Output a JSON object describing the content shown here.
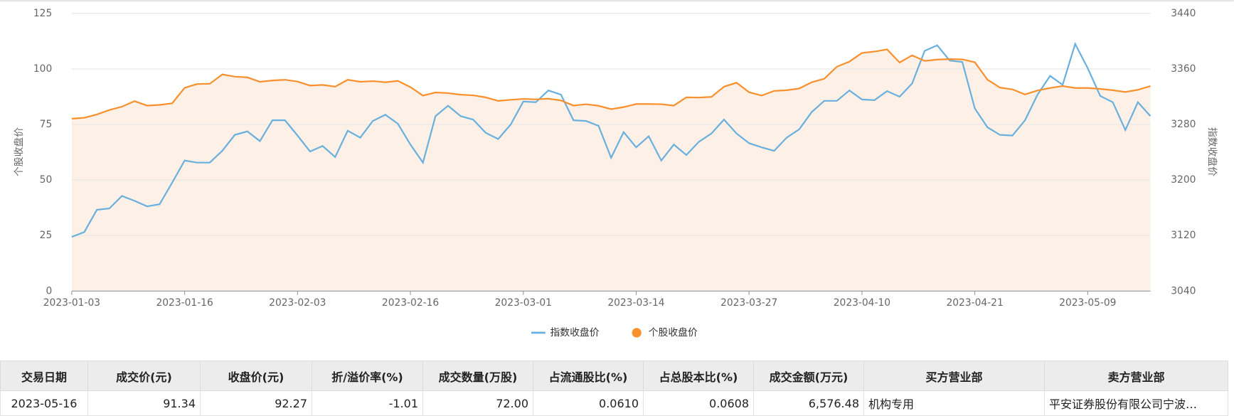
{
  "chart_data": {
    "type": "line",
    "categories": [
      "2023-01-03",
      null,
      null,
      null,
      null,
      null,
      null,
      null,
      null,
      "2023-01-16",
      null,
      null,
      null,
      null,
      null,
      null,
      null,
      null,
      "2023-02-03",
      null,
      null,
      null,
      null,
      null,
      null,
      null,
      null,
      "2023-02-16",
      null,
      null,
      null,
      null,
      null,
      null,
      null,
      null,
      "2023-03-01",
      null,
      null,
      null,
      null,
      null,
      null,
      null,
      null,
      "2023-03-14",
      null,
      null,
      null,
      null,
      null,
      null,
      null,
      null,
      "2023-03-27",
      null,
      null,
      null,
      null,
      null,
      null,
      null,
      null,
      "2023-04-10",
      null,
      null,
      null,
      null,
      null,
      null,
      null,
      null,
      "2023-04-21",
      null,
      null,
      null,
      null,
      null,
      null,
      null,
      null,
      "2023-05-09",
      null,
      null,
      null,
      null,
      null
    ],
    "y_label": "个股收盘价",
    "y2_label": "指数收盘价",
    "ylim": [
      0,
      125
    ],
    "yticks": [
      0,
      25,
      50,
      75,
      100,
      125
    ],
    "y2lim": [
      3040,
      3440
    ],
    "y2ticks": [
      3040,
      3120,
      3200,
      3280,
      3360,
      3440
    ],
    "grid": true,
    "legend": "bottom",
    "series": [
      {
        "name": "指数收盘价",
        "color": "#6ab0de",
        "axis": "y2",
        "values": [
          3118,
          3125,
          3157,
          3159,
          3177,
          3170,
          3162,
          3165,
          3196,
          3228,
          3225,
          3225,
          3242,
          3265,
          3270,
          3256,
          3286,
          3286,
          3264,
          3241,
          3249,
          3233,
          3271,
          3261,
          3285,
          3294,
          3281,
          3251,
          3225,
          3292,
          3307,
          3292,
          3287,
          3268,
          3259,
          3280,
          3313,
          3312,
          3329,
          3323,
          3286,
          3285,
          3278,
          3232,
          3269,
          3247,
          3263,
          3228,
          3251,
          3236,
          3255,
          3267,
          3287,
          3267,
          3253,
          3247,
          3242,
          3261,
          3273,
          3298,
          3314,
          3314,
          3329,
          3316,
          3315,
          3328,
          3320,
          3339,
          3386,
          3394,
          3372,
          3370,
          3303,
          3276,
          3265,
          3264,
          3286,
          3323,
          3350,
          3337,
          3396,
          3361,
          3321,
          3312,
          3272,
          3312,
          3292
        ]
      },
      {
        "name": "个股收盘价",
        "color": "#f7902d",
        "area_color": "#fdf0e6",
        "axis": "y",
        "values": [
          77.6,
          78,
          79.5,
          81.5,
          83,
          85.5,
          83.5,
          83.8,
          84.5,
          91.5,
          93.2,
          93.3,
          97.5,
          96.5,
          96.2,
          94.2,
          94.8,
          95.1,
          94.3,
          92.5,
          92.8,
          92,
          95.1,
          94.2,
          94.5,
          94,
          94.6,
          91.8,
          88,
          89.4,
          89.1,
          88.4,
          88.1,
          87.2,
          85.6,
          86.1,
          86.5,
          86.3,
          86.6,
          85.8,
          83.5,
          84.1,
          83.4,
          81.9,
          82.8,
          84.2,
          84.2,
          84.1,
          83.5,
          87.2,
          87.1,
          87.4,
          92,
          93.8,
          89.5,
          88,
          90.1,
          90.4,
          91.2,
          94,
          95.6,
          101,
          103.3,
          107.2,
          107.8,
          108.8,
          102.9,
          106.1,
          103.6,
          104.2,
          104.4,
          104.3,
          103,
          95.2,
          91.6,
          90.8,
          88.5,
          90.3,
          91.4,
          92.3,
          91.4,
          91.4,
          91,
          90.4,
          89.6,
          90.6,
          92.27
        ]
      }
    ]
  },
  "table": {
    "headers": [
      "交易日期",
      "成交价(元)",
      "收盘价(元)",
      "折/溢价率(%)",
      "成交数量(万股)",
      "占流通股比(%)",
      "占总股本比(%)",
      "成交金额(万元)",
      "买方营业部",
      "卖方营业部"
    ],
    "rows": [
      [
        "2023-05-16",
        "91.34",
        "92.27",
        "-1.01",
        "72.00",
        "0.0610",
        "0.0608",
        "6,576.48",
        "机构专用",
        "平安证券股份有限公司宁波…"
      ]
    ]
  }
}
